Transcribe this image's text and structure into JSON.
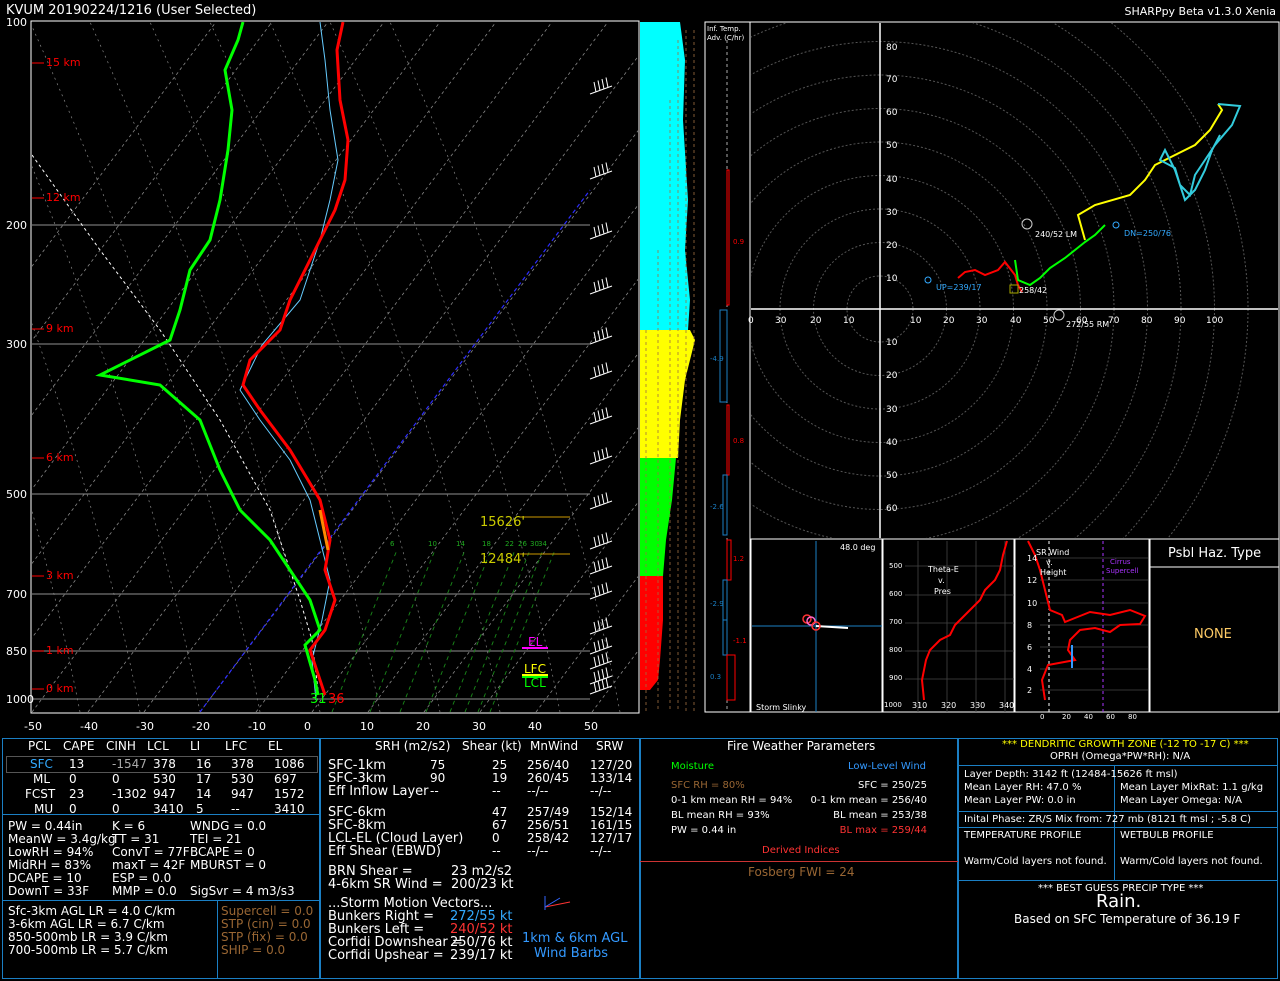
{
  "header": {
    "title": "KVUM   20190224/1216  (User Selected)",
    "version": "SHARPpy Beta v1.3.0 Xenia"
  },
  "skewt": {
    "pressure_labels": [
      "100",
      "200",
      "300",
      "500",
      "700",
      "850",
      "1000"
    ],
    "temp_labels": [
      "-50",
      "-40",
      "-30",
      "-20",
      "-10",
      "0",
      "10",
      "20",
      "30",
      "40",
      "50"
    ],
    "height_labels": [
      "15 km",
      "12 km",
      "9 km",
      "6 km",
      "3 km",
      "1 km",
      "0 km"
    ],
    "mixing_labels": [
      "6",
      "10",
      "14",
      "18",
      "22",
      "26",
      "30",
      "34"
    ],
    "level_markers": {
      "h1": "15626'",
      "h2": "12484'",
      "el": "EL",
      "lfc": "LFC",
      "lcl": "LCL"
    },
    "sfc_td": "31",
    "sfc_t": "36"
  },
  "inferred_temp": {
    "header": "Inf. Temp. Adv. (C/hr)",
    "values": [
      "0.9",
      "-4.9",
      "0.8",
      "-2.6",
      "1.2",
      "-2.9",
      "-1.1",
      "0.3"
    ]
  },
  "hodograph": {
    "x_labels": [
      "30",
      "20",
      "10",
      "10",
      "20",
      "30",
      "40",
      "50",
      "60",
      "70",
      "80",
      "90",
      "100"
    ],
    "y_labels_up": [
      "80",
      "70",
      "60",
      "50",
      "40",
      "30",
      "20",
      "10"
    ],
    "y_labels_down": [
      "10",
      "20",
      "30",
      "40",
      "50",
      "60"
    ],
    "zero": "0",
    "lm": "240/52 LM",
    "rm": "272/55 RM",
    "dn": "DN=250/76",
    "up": "UP=239/17",
    "mean": "258/42"
  },
  "slinky": {
    "angle": "48.0 deg",
    "title": "Storm Slinky"
  },
  "thetae": {
    "title_lines": [
      "Theta-E",
      "v.",
      "Pres"
    ],
    "y_labels": [
      "500",
      "600",
      "700",
      "800",
      "900"
    ],
    "x_labels": [
      "310",
      "320",
      "330",
      "340"
    ],
    "corner": "1000"
  },
  "srwind": {
    "title_lines": [
      "SR Wind",
      "v.",
      "Height"
    ],
    "cirrus": "Cirrus",
    "supercell": "Supercell",
    "y_labels": [
      "14",
      "12",
      "10",
      "8",
      "6",
      "4",
      "2"
    ],
    "x_labels": [
      "0",
      "20",
      "40",
      "60",
      "80"
    ]
  },
  "hazard": {
    "title": "Psbl Haz. Type",
    "value": "NONE"
  },
  "parcel": {
    "headers": [
      "PCL",
      "CAPE",
      "CINH",
      "LCL",
      "LI",
      "LFC",
      "EL"
    ],
    "rows": [
      [
        "SFC",
        "13",
        "-1547",
        "378",
        "16",
        "378",
        "1086"
      ],
      [
        "ML",
        "0",
        "0",
        "530",
        "17",
        "530",
        "697"
      ],
      [
        "FCST",
        "23",
        "-1302",
        "947",
        "14",
        "947",
        "1572"
      ],
      [
        "MU",
        "0",
        "0",
        "3410",
        "5",
        "--",
        "3410"
      ]
    ]
  },
  "indices": {
    "col1": [
      "PW = 0.44in",
      "MeanW = 3.4g/kg",
      "LowRH = 94%",
      "MidRH = 83%",
      "DCAPE = 10",
      "DownT = 33F"
    ],
    "col2": [
      "K = 6",
      "TT = 31",
      "ConvT = 77F",
      "maxT = 42F",
      "ESP = 0.0",
      "MMP = 0.0"
    ],
    "col3": [
      "WNDG = 0.0",
      "TEI = 21",
      "BCAPE = 0",
      "MBURST = 0",
      "",
      "SigSvr = 4 m3/s3"
    ]
  },
  "lapse": [
    "Sfc-3km AGL LR = 4.0 C/km",
    "3-6km AGL LR = 6.7 C/km",
    "850-500mb LR = 3.9 C/km",
    "700-500mb LR = 5.7 C/km"
  ],
  "severe": [
    "Supercell = 0.0",
    "STP (cin) = 0.0",
    "STP (fix) = 0.0",
    "SHIP = 0.0"
  ],
  "kinematics": {
    "headers": [
      "SRH (m2/s2)",
      "Shear (kt)",
      "MnWind",
      "SRW"
    ],
    "rows": [
      [
        "SFC-1km",
        "75",
        "25",
        "256/40",
        "127/20"
      ],
      [
        "SFC-3km",
        "90",
        "19",
        "260/45",
        "133/14"
      ],
      [
        "Eff Inflow Layer",
        "--",
        "--",
        "--/--",
        "--/--"
      ],
      [
        "SFC-6km",
        "",
        "47",
        "257/49",
        "152/14"
      ],
      [
        "SFC-8km",
        "",
        "67",
        "256/51",
        "161/15"
      ],
      [
        "LCL-EL (Cloud Layer)",
        "",
        "0",
        "258/42",
        "127/17"
      ],
      [
        "Eff Shear (EBWD)",
        "",
        "--",
        "--/--",
        "--/--"
      ]
    ],
    "brn_shear_label": "BRN Shear =",
    "brn_shear": "23 m2/s2",
    "sr_wind_label": "4-6km SR Wind =",
    "sr_wind": "200/23 kt",
    "vectors_title": "...Storm Motion Vectors...",
    "vectors": [
      [
        "Bunkers Right =",
        "272/55 kt"
      ],
      [
        "Bunkers Left =",
        "240/52 kt"
      ],
      [
        "Corfidi Downshear =",
        "250/76 kt"
      ],
      [
        "Corfidi Upshear =",
        "239/17 kt"
      ]
    ],
    "barbs_label_1": "1km & 6km AGL",
    "barbs_label_2": "Wind Barbs"
  },
  "fire": {
    "title": "Fire Weather Parameters",
    "moisture": "Moisture",
    "llwind": "Low-Level Wind",
    "left": [
      "SFC RH = 80%",
      "0-1 km mean RH = 94%",
      "BL mean RH = 93%",
      "PW = 0.44 in"
    ],
    "right": [
      "SFC = 250/25",
      "0-1 km mean = 256/40",
      "BL mean = 253/38",
      "BL max = 259/44"
    ],
    "derived": "Derived Indices",
    "fwi": "Fosberg FWI = 24"
  },
  "dgz": {
    "title": "*** DENDRITIC GROWTH ZONE (-12 TO -17 C) ***",
    "oprh": "OPRH (Omega*PW*RH): N/A",
    "depth": "Layer Depth: 3142 ft (12484-15626 ft msl)",
    "rh": "Mean Layer RH: 47.0 %",
    "mixrat": "Mean Layer MixRat: 1.1 g/kg",
    "pw": "Mean Layer PW: 0.0 in",
    "omega": "Mean Layer Omega: N/A",
    "initial": "Inital Phase: ZR/S Mix from: 727 mb (8121 ft msl ; -5.8 C)",
    "temp_profile": "TEMPERATURE PROFILE",
    "wetbulb_profile": "WETBULB PROFILE",
    "temp_msg": "Warm/Cold layers not found.",
    "wetbulb_msg": "Warm/Cold layers not found.",
    "precip_title": "*** BEST GUESS PRECIP TYPE ***",
    "precip": "Rain.",
    "precip_basis": "Based on SFC Temperature of 36.19 F"
  },
  "colors": {
    "border": "#1b7fc4",
    "temp": "#ff0000",
    "dew": "#00ff00",
    "cyan": "#00ffff",
    "yellow": "#ffff00",
    "orange": "#ff8800"
  }
}
